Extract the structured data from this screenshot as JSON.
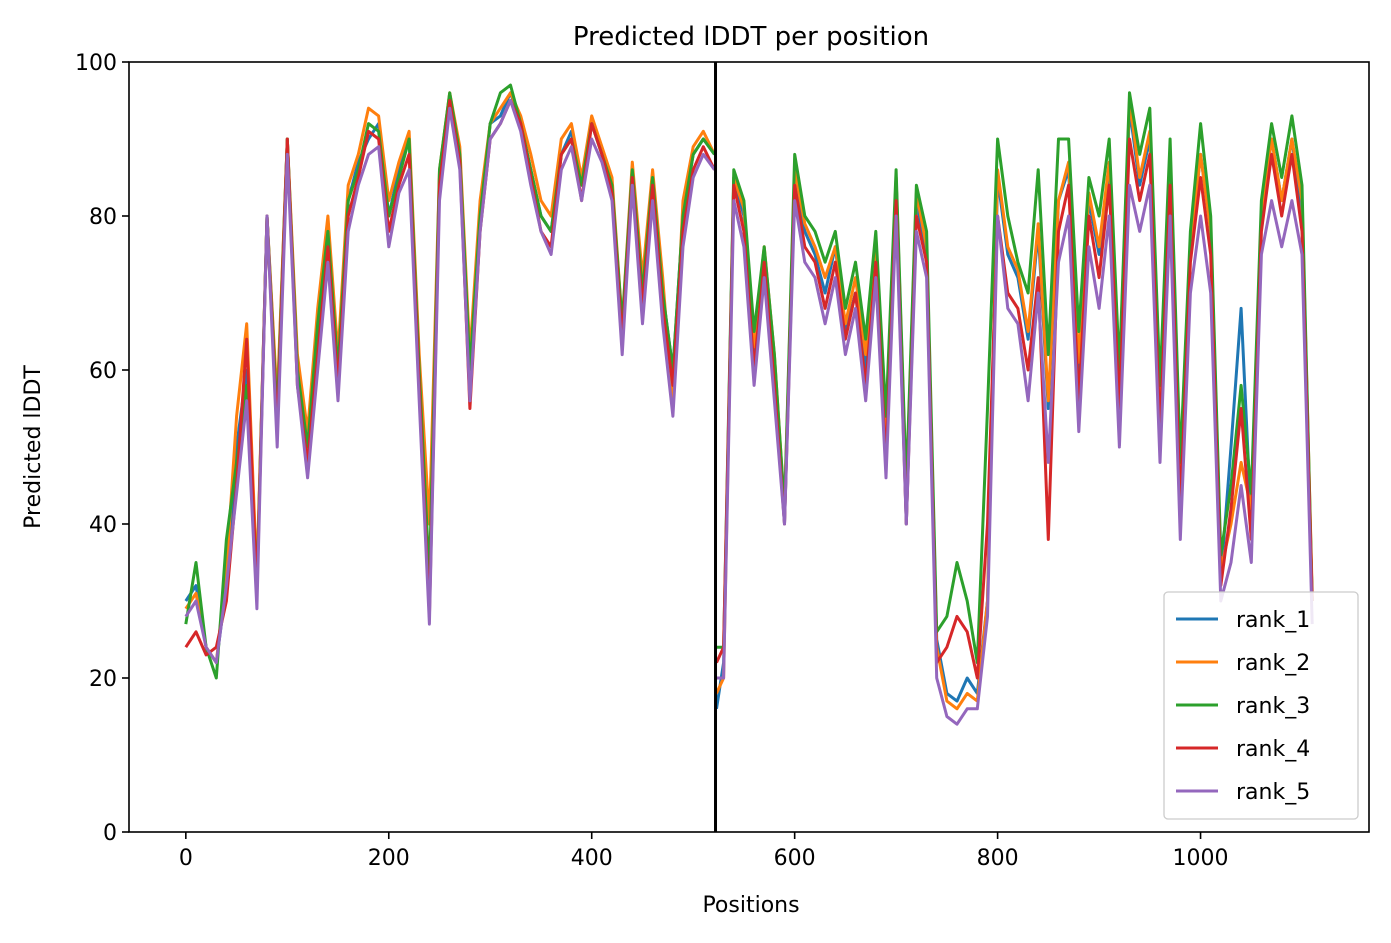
{
  "chart_data": {
    "type": "line",
    "title": "Predicted lDDT per position",
    "xlabel": "Positions",
    "ylabel": "Predicted lDDT",
    "xlim": [
      -56,
      1166
    ],
    "ylim": [
      0,
      100
    ],
    "xticks": [
      0,
      200,
      400,
      600,
      800,
      1000
    ],
    "yticks": [
      0,
      20,
      40,
      60,
      80,
      100
    ],
    "grid": false,
    "legend_position": "lower right",
    "chain_boundary_x": 522,
    "x_breakpoints": [
      0,
      10,
      20,
      30,
      40,
      50,
      60,
      70,
      80,
      90,
      100,
      110,
      120,
      130,
      140,
      150,
      160,
      170,
      180,
      190,
      200,
      210,
      220,
      230,
      240,
      250,
      260,
      270,
      280,
      290,
      300,
      310,
      320,
      330,
      340,
      350,
      360,
      370,
      380,
      390,
      400,
      410,
      420,
      430,
      440,
      450,
      460,
      470,
      480,
      490,
      500,
      510,
      521,
      523,
      530,
      540,
      550,
      560,
      570,
      580,
      590,
      600,
      610,
      620,
      630,
      640,
      650,
      660,
      670,
      680,
      690,
      700,
      710,
      720,
      730,
      740,
      750,
      760,
      770,
      780,
      790,
      800,
      810,
      820,
      830,
      840,
      850,
      860,
      870,
      880,
      890,
      900,
      910,
      920,
      930,
      940,
      950,
      960,
      970,
      980,
      990,
      1000,
      1010,
      1020,
      1030,
      1040,
      1050,
      1060,
      1070,
      1080,
      1090,
      1100,
      1110
    ],
    "series": [
      {
        "name": "rank_1",
        "color": "#1f77b4",
        "values": [
          30,
          32,
          24,
          22,
          32,
          50,
          60,
          32,
          80,
          55,
          90,
          60,
          50,
          65,
          78,
          60,
          82,
          87,
          90,
          92,
          80,
          86,
          90,
          60,
          30,
          85,
          95,
          88,
          60,
          80,
          92,
          93,
          96,
          92,
          86,
          80,
          78,
          88,
          91,
          84,
          92,
          88,
          84,
          65,
          86,
          70,
          85,
          70,
          60,
          80,
          88,
          90,
          88,
          16,
          22,
          85,
          80,
          62,
          75,
          60,
          40,
          86,
          78,
          75,
          70,
          76,
          65,
          70,
          60,
          75,
          50,
          85,
          40,
          82,
          75,
          25,
          18,
          17,
          20,
          18,
          30,
          85,
          75,
          72,
          64,
          78,
          55,
          82,
          86,
          60,
          82,
          75,
          86,
          58,
          94,
          84,
          90,
          55,
          88,
          45,
          76,
          88,
          78,
          33,
          50,
          68,
          40,
          80,
          90,
          82,
          90,
          80,
          30
        ]
      },
      {
        "name": "rank_2",
        "color": "#ff7f0e",
        "values": [
          29,
          31,
          24,
          22,
          34,
          54,
          66,
          33,
          80,
          56,
          90,
          62,
          52,
          68,
          80,
          62,
          84,
          88,
          94,
          93,
          82,
          87,
          91,
          62,
          40,
          86,
          96,
          89,
          62,
          82,
          92,
          94,
          96,
          93,
          88,
          82,
          80,
          90,
          92,
          85,
          93,
          89,
          85,
          66,
          87,
          72,
          86,
          72,
          55,
          82,
          89,
          91,
          88,
          18,
          20,
          85,
          81,
          63,
          76,
          62,
          42,
          86,
          79,
          76,
          72,
          76,
          66,
          72,
          62,
          76,
          52,
          85,
          44,
          83,
          76,
          24,
          17,
          16,
          18,
          17,
          30,
          86,
          76,
          73,
          65,
          79,
          56,
          82,
          87,
          61,
          83,
          76,
          87,
          59,
          95,
          85,
          91,
          56,
          88,
          46,
          76,
          88,
          78,
          34,
          40,
          48,
          42,
          80,
          90,
          82,
          90,
          82,
          31
        ]
      },
      {
        "name": "rank_3",
        "color": "#2ca02c",
        "values": [
          27,
          35,
          24,
          20,
          38,
          48,
          58,
          32,
          80,
          54,
          90,
          60,
          50,
          66,
          78,
          60,
          82,
          86,
          92,
          91,
          80,
          85,
          90,
          60,
          33,
          86,
          96,
          88,
          60,
          80,
          92,
          96,
          97,
          92,
          86,
          80,
          78,
          88,
          90,
          84,
          92,
          88,
          84,
          66,
          86,
          70,
          85,
          70,
          60,
          80,
          88,
          90,
          88,
          24,
          24,
          86,
          82,
          65,
          76,
          62,
          42,
          88,
          80,
          78,
          74,
          78,
          68,
          74,
          64,
          78,
          54,
          86,
          45,
          84,
          78,
          26,
          28,
          35,
          30,
          22,
          55,
          90,
          80,
          74,
          70,
          86,
          62,
          90,
          90,
          65,
          85,
          80,
          90,
          60,
          96,
          88,
          94,
          58,
          90,
          48,
          78,
          92,
          80,
          36,
          45,
          58,
          44,
          82,
          92,
          85,
          93,
          84,
          30
        ]
      },
      {
        "name": "rank_4",
        "color": "#d62728",
        "values": [
          24,
          26,
          23,
          24,
          30,
          45,
          64,
          31,
          80,
          52,
          90,
          58,
          48,
          62,
          76,
          58,
          80,
          85,
          91,
          90,
          78,
          84,
          88,
          58,
          28,
          84,
          95,
          87,
          55,
          78,
          90,
          92,
          95,
          92,
          85,
          78,
          76,
          88,
          90,
          82,
          92,
          88,
          83,
          64,
          85,
          68,
          84,
          68,
          58,
          78,
          86,
          89,
          86,
          22,
          24,
          84,
          78,
          60,
          74,
          58,
          40,
          84,
          76,
          74,
          68,
          74,
          64,
          70,
          58,
          74,
          48,
          82,
          40,
          80,
          74,
          22,
          24,
          28,
          26,
          20,
          40,
          80,
          70,
          68,
          60,
          72,
          38,
          78,
          84,
          56,
          80,
          72,
          84,
          55,
          90,
          82,
          88,
          52,
          84,
          42,
          74,
          85,
          75,
          32,
          42,
          55,
          38,
          78,
          88,
          80,
          88,
          78,
          30
        ]
      },
      {
        "name": "rank_5",
        "color": "#9467bd",
        "values": [
          28,
          30,
          24,
          22,
          32,
          44,
          56,
          29,
          80,
          50,
          88,
          58,
          46,
          60,
          74,
          56,
          78,
          84,
          88,
          89,
          76,
          83,
          86,
          56,
          27,
          82,
          94,
          86,
          56,
          78,
          90,
          92,
          95,
          91,
          84,
          78,
          75,
          86,
          89,
          82,
          90,
          87,
          82,
          62,
          84,
          66,
          82,
          66,
          54,
          76,
          85,
          88,
          86,
          20,
          20,
          82,
          76,
          58,
          72,
          56,
          40,
          82,
          74,
          72,
          66,
          72,
          62,
          68,
          56,
          72,
          46,
          80,
          40,
          78,
          72,
          20,
          15,
          14,
          16,
          16,
          28,
          80,
          68,
          66,
          56,
          70,
          48,
          74,
          80,
          52,
          76,
          68,
          80,
          50,
          84,
          78,
          84,
          48,
          80,
          38,
          70,
          80,
          70,
          30,
          35,
          45,
          35,
          75,
          82,
          76,
          82,
          75,
          27
        ]
      }
    ]
  }
}
